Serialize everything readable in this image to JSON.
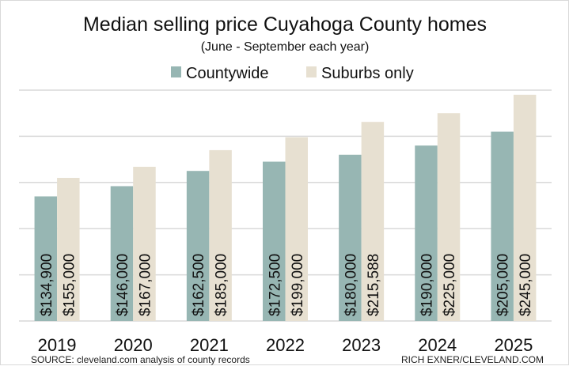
{
  "chart_data": {
    "type": "bar",
    "title": "Median selling price Cuyahoga County homes",
    "subtitle": "(June - September each year)",
    "categories": [
      "2019",
      "2020",
      "2021",
      "2022",
      "2023",
      "2024",
      "2025"
    ],
    "series": [
      {
        "name": "Countywide",
        "color": "#97b6b3",
        "values": [
          134900,
          146000,
          162500,
          172500,
          180000,
          190000,
          205000
        ],
        "labels": [
          "$134,900",
          "$146,000",
          "$162,500",
          "$172,500",
          "$180,000",
          "$190,000",
          "$205,000"
        ]
      },
      {
        "name": "Suburbs only",
        "color": "#e7e0d1",
        "values": [
          155000,
          167000,
          185000,
          199000,
          215588,
          225000,
          245000
        ],
        "labels": [
          "$155,000",
          "$167,000",
          "$185,000",
          "$199,000",
          "$215,588",
          "$225,000",
          "$245,000"
        ]
      }
    ],
    "ylim": [
      0,
      250000
    ],
    "ytick_step": 50000,
    "grid": true,
    "legend_placement": "top",
    "gridline_color": "#d9d9d9"
  },
  "footer": {
    "source": "SOURCE: cleveland.com analysis of county records",
    "credit": "RICH EXNER/CLEVELAND.COM"
  }
}
